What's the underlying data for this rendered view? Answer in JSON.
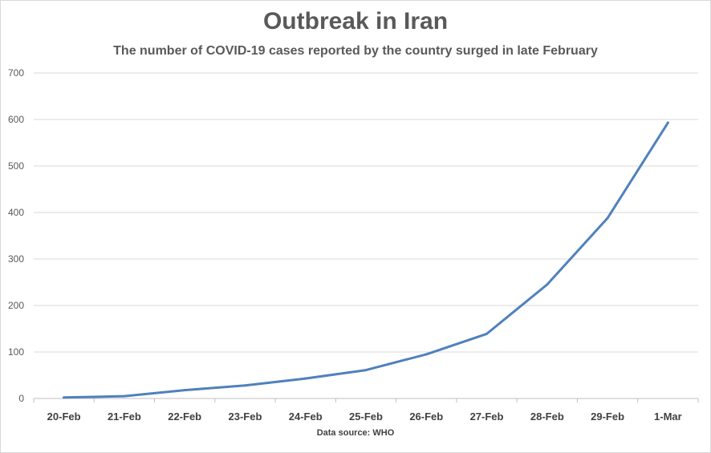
{
  "chart_data": {
    "type": "line",
    "title": "Outbreak in Iran",
    "subtitle": "The number of COVID-19 cases reported by the country surged in late February",
    "source": "Data source: WHO",
    "categories": [
      "20-Feb",
      "21-Feb",
      "22-Feb",
      "23-Feb",
      "24-Feb",
      "25-Feb",
      "26-Feb",
      "27-Feb",
      "28-Feb",
      "29-Feb",
      "1-Mar"
    ],
    "series": [
      {
        "values": [
          2,
          5,
          18,
          28,
          43,
          61,
          95,
          139,
          245,
          388,
          593
        ],
        "color": "#4f81bd"
      }
    ],
    "ylim": [
      0,
      700
    ],
    "yticks": [
      0,
      100,
      200,
      300,
      400,
      500,
      600,
      700
    ],
    "grid": true,
    "legend": "none"
  }
}
